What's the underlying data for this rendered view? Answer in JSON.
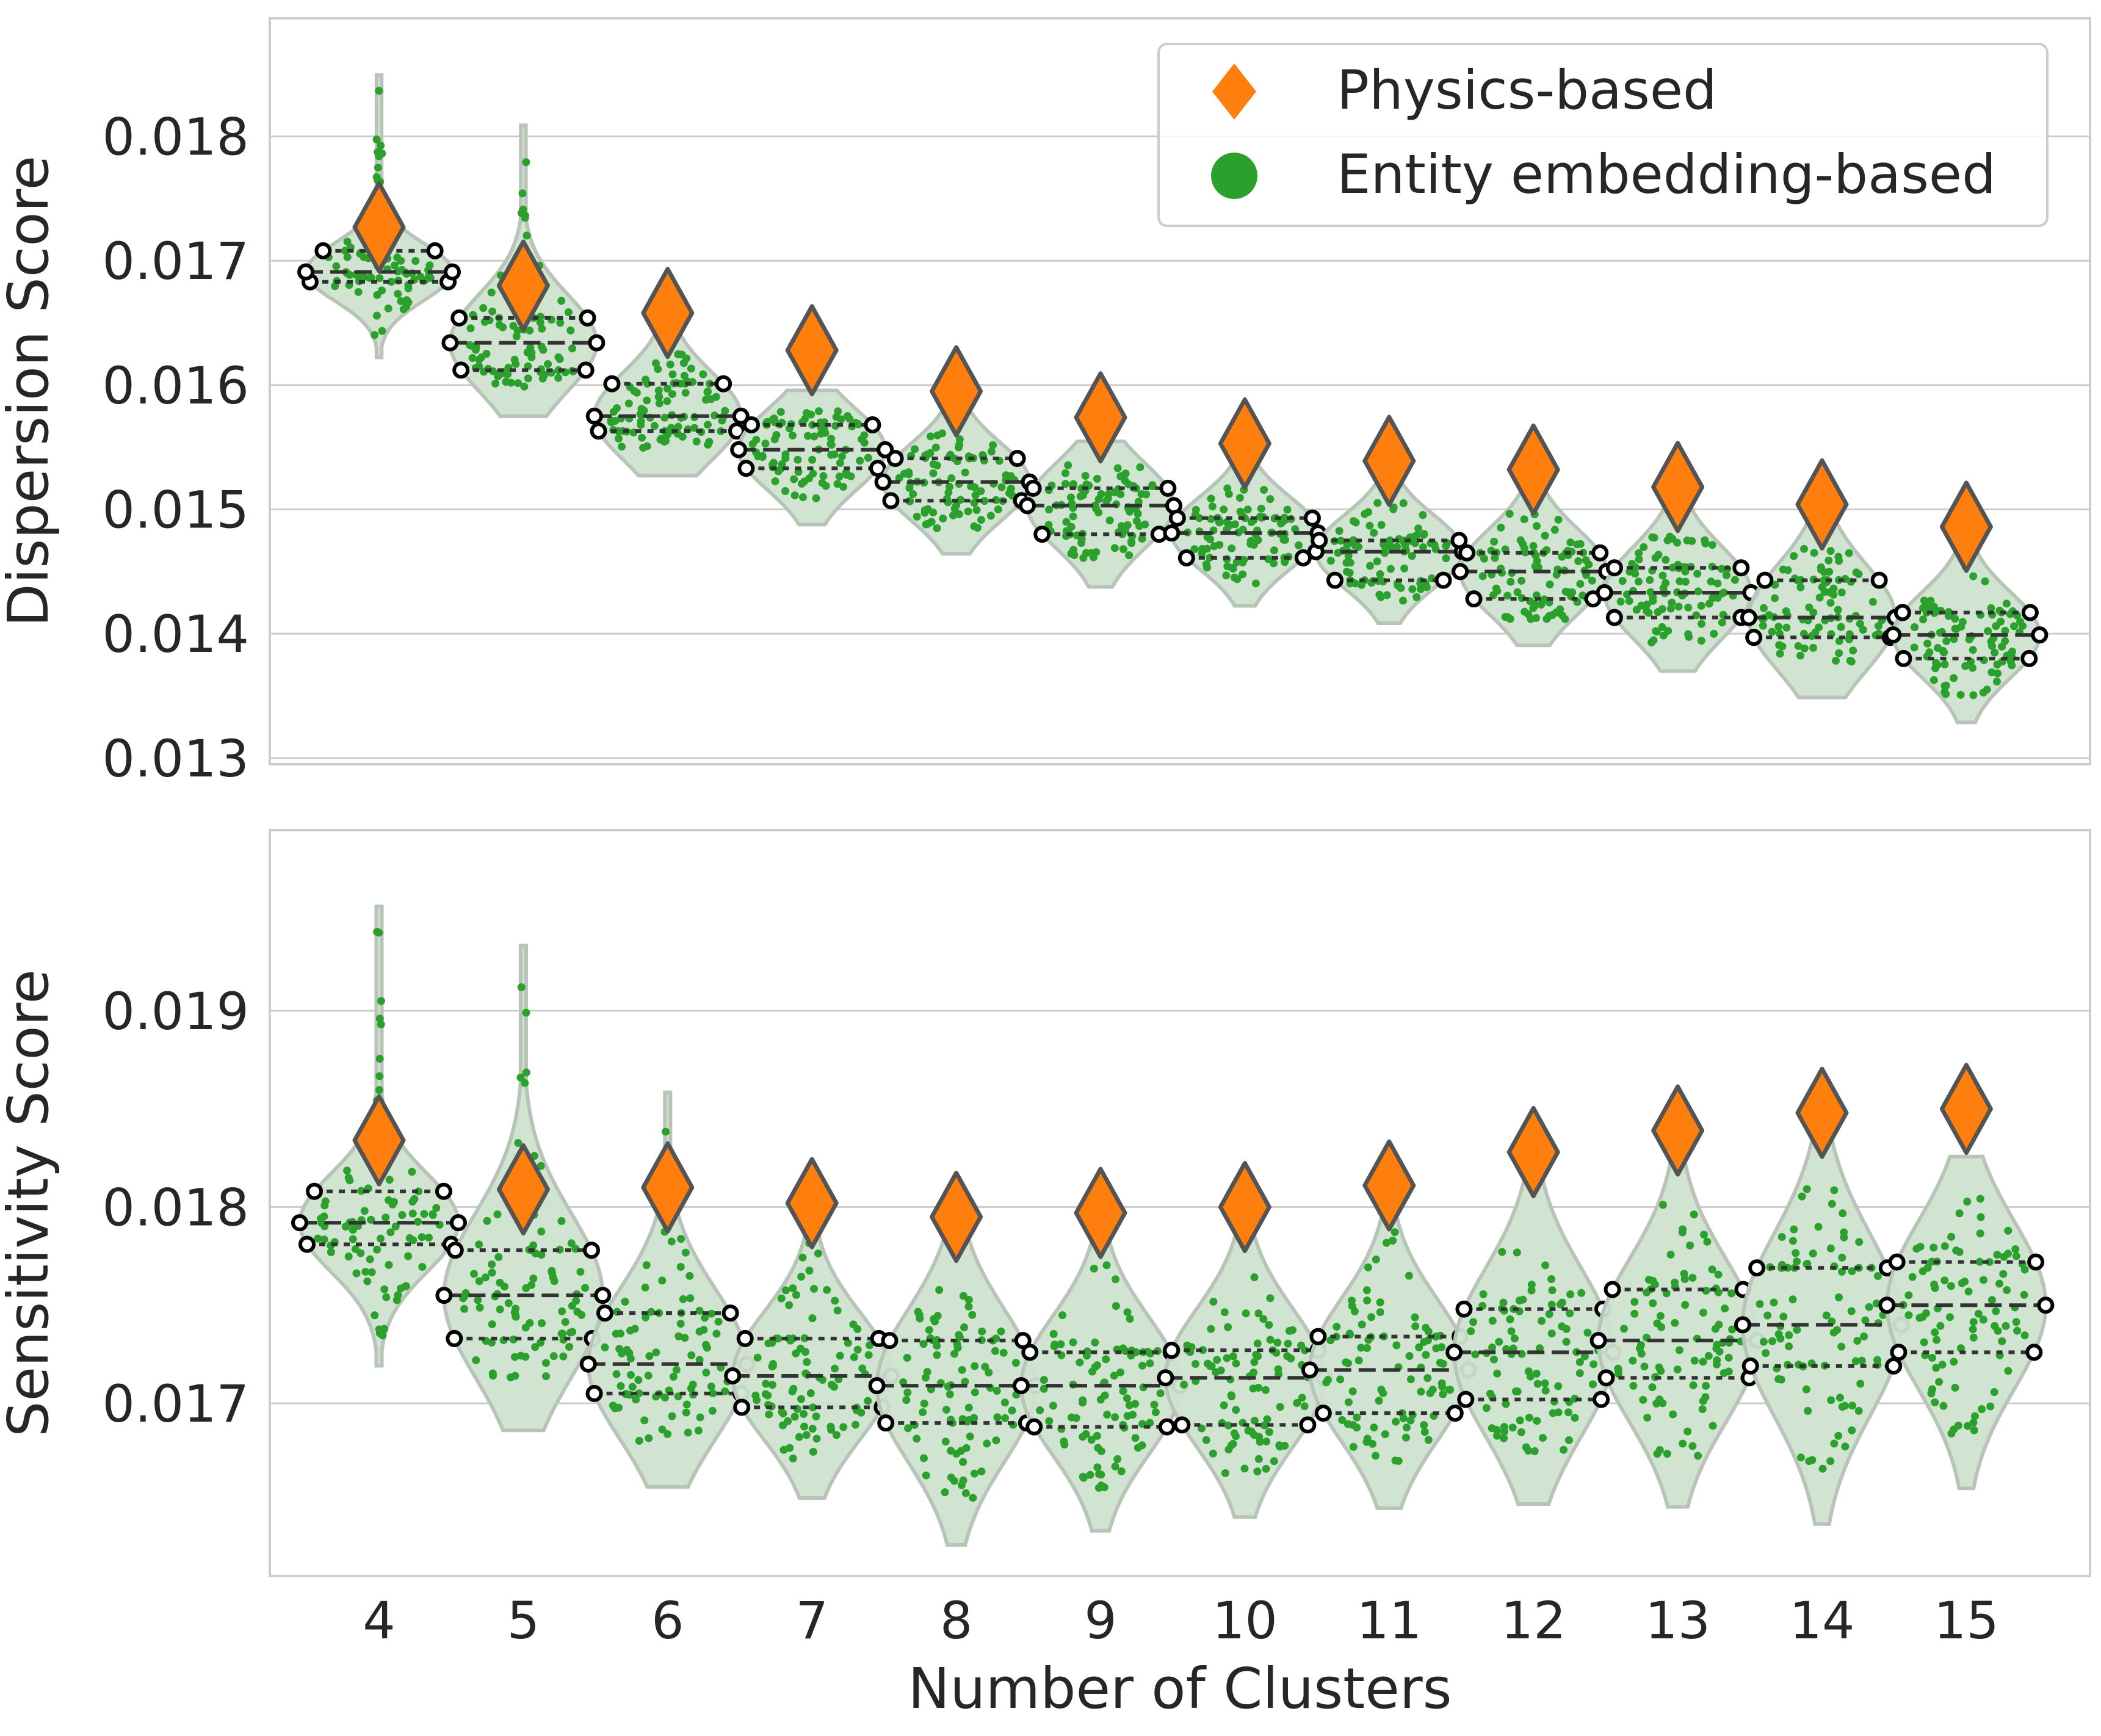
{
  "chart_data": [
    {
      "type": "violin",
      "ylabel": "Dispersion Score",
      "xlabel": "",
      "ylim": [
        0.01295,
        0.01895
      ],
      "yticks": [
        "0.013",
        "0.014",
        "0.015",
        "0.016",
        "0.017",
        "0.018"
      ],
      "grid": true,
      "legend": {
        "placement": "top-right",
        "entries": [
          "Physics-based",
          "Entity embedding-based"
        ]
      },
      "categories": [
        "4",
        "5",
        "6",
        "7",
        "8",
        "9",
        "10",
        "11",
        "12",
        "13",
        "14",
        "15"
      ],
      "series": [
        {
          "name": "Physics-based",
          "marker": "diamond",
          "values": [
            0.01727,
            0.0168,
            0.01658,
            0.01628,
            0.01595,
            0.01574,
            0.01553,
            0.01539,
            0.01532,
            0.01518,
            0.01504,
            0.01486
          ]
        },
        {
          "name": "Entity embedding-based",
          "marker": "dot",
          "q1": [
            0.01683,
            0.01612,
            0.01563,
            0.01533,
            0.01507,
            0.0148,
            0.01461,
            0.01443,
            0.01428,
            0.01413,
            0.01397,
            0.0138
          ],
          "median": [
            0.01691,
            0.01634,
            0.01575,
            0.01548,
            0.01522,
            0.01503,
            0.01481,
            0.01466,
            0.0145,
            0.01433,
            0.01413,
            0.01399
          ],
          "q3": [
            0.01708,
            0.01654,
            0.01601,
            0.01568,
            0.01541,
            0.01517,
            0.01493,
            0.01475,
            0.01465,
            0.01453,
            0.01443,
            0.01417
          ],
          "min": [
            0.01636,
            0.01598,
            0.01548,
            0.01507,
            0.01483,
            0.01458,
            0.0144,
            0.01426,
            0.01411,
            0.01392,
            0.01374,
            0.01349
          ],
          "max": [
            0.01838,
            0.0179,
            0.01631,
            0.0158,
            0.01562,
            0.01538,
            0.0152,
            0.01506,
            0.01498,
            0.01484,
            0.0147,
            0.01459
          ]
        }
      ]
    },
    {
      "type": "violin",
      "ylabel": "Sensitivity Score",
      "xlabel": "Number of Clusters",
      "ylim": [
        0.01612,
        0.01992
      ],
      "yticks": [
        "0.017",
        "0.018",
        "0.019"
      ],
      "grid": true,
      "categories": [
        "4",
        "5",
        "6",
        "7",
        "8",
        "9",
        "10",
        "11",
        "12",
        "13",
        "14",
        "15"
      ],
      "series": [
        {
          "name": "Physics-based",
          "marker": "diamond",
          "values": [
            0.01834,
            0.01809,
            0.0181,
            0.01802,
            0.01795,
            0.01797,
            0.018,
            0.01811,
            0.01828,
            0.01839,
            0.01848,
            0.0185
          ]
        },
        {
          "name": "Entity embedding-based",
          "marker": "dot",
          "q1": [
            0.01781,
            0.01733,
            0.01705,
            0.01698,
            0.0169,
            0.01688,
            0.01689,
            0.01695,
            0.01702,
            0.01713,
            0.01719,
            0.01726
          ],
          "median": [
            0.01792,
            0.01755,
            0.0172,
            0.01714,
            0.01709,
            0.01709,
            0.01713,
            0.01717,
            0.01726,
            0.01732,
            0.0174,
            0.0175
          ],
          "q3": [
            0.01808,
            0.01778,
            0.01746,
            0.01733,
            0.01732,
            0.01726,
            0.01727,
            0.01734,
            0.01748,
            0.01758,
            0.01769,
            0.01772
          ],
          "min": [
            0.01734,
            0.01711,
            0.0168,
            0.01671,
            0.01651,
            0.01656,
            0.01663,
            0.01668,
            0.01674,
            0.01672,
            0.01666,
            0.01682
          ],
          "max": [
            0.01941,
            0.01913,
            0.0184,
            0.01783,
            0.01772,
            0.01775,
            0.01774,
            0.0179,
            0.01794,
            0.01802,
            0.01813,
            0.01805
          ]
        }
      ]
    }
  ],
  "colors": {
    "physics": "#ff7f0e",
    "embedding": "#2ca02c",
    "violin_fill": "#cfe3cf",
    "violin_edge": "#b9c4b9",
    "grid": "#cccccc",
    "text": "#262626",
    "diamond_edge": "#545454"
  }
}
